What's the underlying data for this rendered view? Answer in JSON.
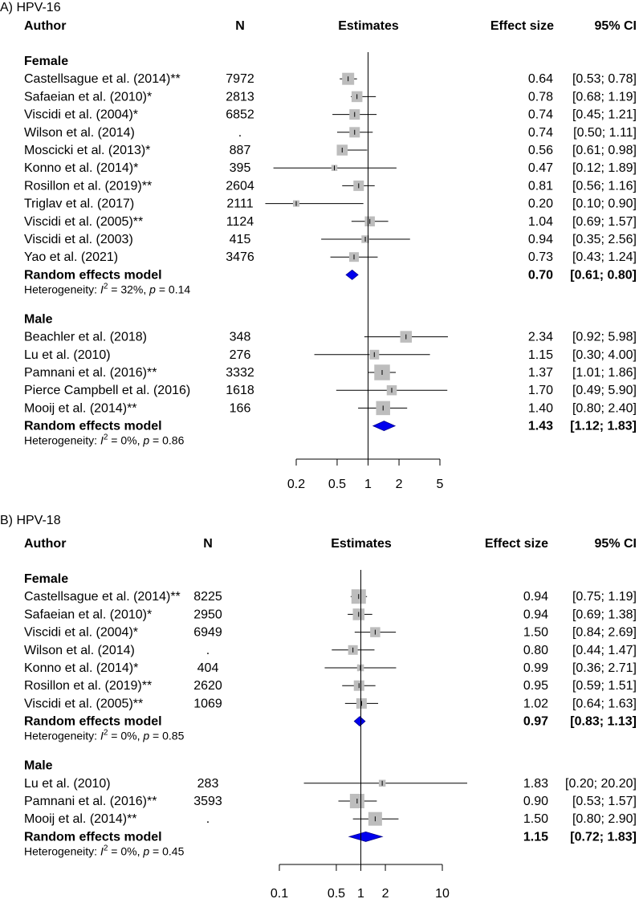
{
  "chart_data": [
    {
      "type": "forest",
      "title": "A) HPV-16",
      "headers": {
        "author": "Author",
        "n": "N",
        "estimates": "Estimates",
        "effect": "Effect size",
        "ci": "95% CI"
      },
      "xscale": "log",
      "xlim": [
        0.2,
        5
      ],
      "ticks": [
        {
          "value": 0.2,
          "label": "0.2"
        },
        {
          "value": 0.5,
          "label": "0.5"
        },
        {
          "value": 1,
          "label": "1"
        },
        {
          "value": 2,
          "label": "2"
        },
        {
          "value": 5,
          "label": "5"
        }
      ],
      "groups": [
        {
          "label": "Female",
          "studies": [
            {
              "author": "Castellsague et al. (2014)**",
              "n": "7972",
              "est": 0.64,
              "lo": 0.53,
              "hi": 0.78,
              "effect": "0.64",
              "ci": "[0.53; 0.78]",
              "weight": 1.0
            },
            {
              "author": "Safaeian et al. (2010)*",
              "n": "2813",
              "est": 0.78,
              "lo": 0.68,
              "hi": 1.19,
              "effect": "0.78",
              "ci": "[0.68; 1.19]",
              "weight": 0.85
            },
            {
              "author": "Viscidi et al. (2004)*",
              "n": "6852",
              "est": 0.74,
              "lo": 0.45,
              "hi": 1.21,
              "effect": "0.74",
              "ci": "[0.45; 1.21]",
              "weight": 0.8
            },
            {
              "author": "Wilson et al. (2014)",
              "n": ".",
              "est": 0.74,
              "lo": 0.5,
              "hi": 1.11,
              "effect": "0.74",
              "ci": "[0.50; 1.11]",
              "weight": 0.8
            },
            {
              "author": "Moscicki et al. (2013)*",
              "n": "887",
              "est": 0.56,
              "lo": 0.61,
              "hi": 0.98,
              "effect": "0.56",
              "ci": "[0.61; 0.98]",
              "weight": 0.85
            },
            {
              "author": "Konno et al. (2014)*",
              "n": "395",
              "est": 0.47,
              "lo": 0.12,
              "hi": 1.89,
              "effect": "0.47",
              "ci": "[0.12; 1.89]",
              "weight": 0.25
            },
            {
              "author": "Rosillon et al. (2019)**",
              "n": "2604",
              "est": 0.81,
              "lo": 0.56,
              "hi": 1.16,
              "effect": "0.81",
              "ci": "[0.56; 1.16]",
              "weight": 0.8
            },
            {
              "author": "Triglav et al. (2017)",
              "n": "2111",
              "est": 0.2,
              "lo": 0.1,
              "hi": 0.9,
              "effect": "0.20",
              "ci": "[0.10; 0.90]",
              "weight": 0.3
            },
            {
              "author": "Viscidi et al. (2005)**",
              "n": "1124",
              "est": 1.04,
              "lo": 0.69,
              "hi": 1.57,
              "effect": "1.04",
              "ci": "[0.69; 1.57]",
              "weight": 0.75
            },
            {
              "author": "Viscidi et al. (2003)",
              "n": "415",
              "est": 0.94,
              "lo": 0.35,
              "hi": 2.56,
              "effect": "0.94",
              "ci": "[0.35; 2.56]",
              "weight": 0.45
            },
            {
              "author": "Yao et al. (2021)",
              "n": "3476",
              "est": 0.73,
              "lo": 0.43,
              "hi": 1.24,
              "effect": "0.73",
              "ci": "[0.43; 1.24]",
              "weight": 0.7
            }
          ],
          "summary": {
            "label": "Random effects model",
            "est": 0.7,
            "lo": 0.61,
            "hi": 0.8,
            "effect": "0.70",
            "ci": "[0.61; 0.80]"
          },
          "heterogeneity": {
            "prefix": "Heterogeneity: ",
            "i2": "I",
            "sup": "2",
            "text": " = 32%, ",
            "p": "p",
            "ptext": " = 0.14"
          }
        },
        {
          "label": "Male",
          "studies": [
            {
              "author": "Beachler et al. (2018)",
              "n": "348",
              "est": 2.34,
              "lo": 0.92,
              "hi": 5.98,
              "effect": "2.34",
              "ci": "[0.92; 5.98]",
              "weight": 0.95
            },
            {
              "author": "Lu et al. (2010)",
              "n": "276",
              "est": 1.15,
              "lo": 0.3,
              "hi": 4.0,
              "effect": "1.15",
              "ci": "[0.30; 4.00]",
              "weight": 0.7
            },
            {
              "author": "Pamnani et al. (2016)**",
              "n": "3332",
              "est": 1.37,
              "lo": 1.01,
              "hi": 1.86,
              "effect": "1.37",
              "ci": "[1.01; 1.86]",
              "weight": 1.45
            },
            {
              "author": "Pierce Campbell et al. (2016)",
              "n": "1618",
              "est": 1.7,
              "lo": 0.49,
              "hi": 5.9,
              "effect": "1.70",
              "ci": "[0.49; 5.90]",
              "weight": 0.75
            },
            {
              "author": "Mooij et al. (2014)**",
              "n": "166",
              "est": 1.4,
              "lo": 0.8,
              "hi": 2.4,
              "effect": "1.40",
              "ci": "[0.80; 2.40]",
              "weight": 1.25
            }
          ],
          "summary": {
            "label": "Random effects model",
            "est": 1.43,
            "lo": 1.12,
            "hi": 1.83,
            "effect": "1.43",
            "ci": "[1.12; 1.83]"
          },
          "heterogeneity": {
            "prefix": "Heterogeneity: ",
            "i2": "I",
            "sup": "2",
            "text": " = 0%, ",
            "p": "p",
            "ptext": " = 0.86"
          }
        }
      ]
    },
    {
      "type": "forest",
      "title": "B) HPV-18",
      "headers": {
        "author": "Author",
        "n": "N",
        "estimates": "Estimates",
        "effect": "Effect size",
        "ci": "95% CI"
      },
      "xscale": "log",
      "xlim": [
        0.1,
        10
      ],
      "ticks": [
        {
          "value": 0.1,
          "label": "0.1"
        },
        {
          "value": 0.5,
          "label": "0.5"
        },
        {
          "value": 1,
          "label": "1"
        },
        {
          "value": 2,
          "label": "2"
        },
        {
          "value": 10,
          "label": "10"
        }
      ],
      "groups": [
        {
          "label": "Female",
          "studies": [
            {
              "author": "Castellsague et al. (2014)**",
              "n": "8225",
              "est": 0.94,
              "lo": 0.75,
              "hi": 1.19,
              "effect": "0.94",
              "ci": "[0.75; 1.19]",
              "weight": 1.3
            },
            {
              "author": "Safaeian et al. (2010)*",
              "n": "2950",
              "est": 0.94,
              "lo": 0.69,
              "hi": 1.38,
              "effect": "0.94",
              "ci": "[0.69; 1.38]",
              "weight": 0.95
            },
            {
              "author": "Viscidi et al. (2004)*",
              "n": "6949",
              "est": 1.5,
              "lo": 0.84,
              "hi": 2.69,
              "effect": "1.50",
              "ci": "[0.84; 2.69]",
              "weight": 0.75
            },
            {
              "author": "Wilson et al. (2014)",
              "n": ".",
              "est": 0.8,
              "lo": 0.44,
              "hi": 1.47,
              "effect": "0.80",
              "ci": "[0.44; 1.47]",
              "weight": 0.7
            },
            {
              "author": "Konno et al. (2014)*",
              "n": "404",
              "est": 0.99,
              "lo": 0.36,
              "hi": 2.71,
              "effect": "0.99",
              "ci": "[0.36; 2.71]",
              "weight": 0.35
            },
            {
              "author": "Rosillon et al. (2019)**",
              "n": "2620",
              "est": 0.95,
              "lo": 0.59,
              "hi": 1.51,
              "effect": "0.95",
              "ci": "[0.59; 1.51]",
              "weight": 0.8
            },
            {
              "author": "Viscidi et al. (2005)**",
              "n": "1069",
              "est": 1.02,
              "lo": 0.64,
              "hi": 1.63,
              "effect": "1.02",
              "ci": "[0.64; 1.63]",
              "weight": 0.8
            }
          ],
          "summary": {
            "label": "Random effects model",
            "est": 0.97,
            "lo": 0.83,
            "hi": 1.13,
            "effect": "0.97",
            "ci": "[0.83; 1.13]"
          },
          "heterogeneity": {
            "prefix": "Heterogeneity: ",
            "i2": "I",
            "sup": "2",
            "text": " = 0%, ",
            "p": "p",
            "ptext": " = 0.85"
          }
        },
        {
          "label": "Male",
          "studies": [
            {
              "author": "Lu et al. (2010)",
              "n": "283",
              "est": 1.83,
              "lo": 0.2,
              "hi": 20.2,
              "effect": "1.83",
              "ci": "[0.20; 20.20]",
              "weight": 0.35
            },
            {
              "author": "Pamnani et al. (2016)**",
              "n": "3593",
              "est": 0.9,
              "lo": 0.53,
              "hi": 1.57,
              "effect": "0.90",
              "ci": "[0.53; 1.57]",
              "weight": 1.3
            },
            {
              "author": "Mooij et al. (2014)**",
              "n": ".",
              "est": 1.5,
              "lo": 0.8,
              "hi": 2.9,
              "effect": "1.50",
              "ci": "[0.80; 2.90]",
              "weight": 1.2
            }
          ],
          "summary": {
            "label": "Random effects model",
            "est": 1.15,
            "lo": 0.72,
            "hi": 1.83,
            "effect": "1.15",
            "ci": "[0.72; 1.83]"
          },
          "heterogeneity": {
            "prefix": "Heterogeneity: ",
            "i2": "I",
            "sup": "2",
            "text": " = 0%, ",
            "p": "p",
            "ptext": " = 0.45"
          }
        }
      ]
    }
  ]
}
